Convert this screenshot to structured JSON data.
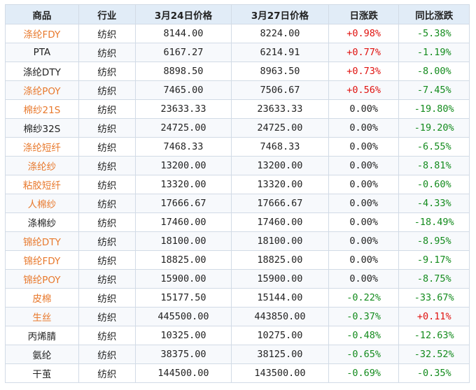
{
  "table": {
    "headers": [
      "商品",
      "行业",
      "3月24日价格",
      "3月27日价格",
      "日涨跌",
      "同比涨跌"
    ],
    "rows": [
      {
        "name": "涤纶FDY",
        "name_color": "orange",
        "industry": "纺织",
        "price1": "8144.00",
        "price2": "8224.00",
        "daily": "+0.98%",
        "daily_dir": "up",
        "yoy": "-5.38%",
        "yoy_dir": "down"
      },
      {
        "name": "PTA",
        "name_color": "black",
        "industry": "纺织",
        "price1": "6167.27",
        "price2": "6214.91",
        "daily": "+0.77%",
        "daily_dir": "up",
        "yoy": "-1.19%",
        "yoy_dir": "down"
      },
      {
        "name": "涤纶DTY",
        "name_color": "black",
        "industry": "纺织",
        "price1": "8898.50",
        "price2": "8963.50",
        "daily": "+0.73%",
        "daily_dir": "up",
        "yoy": "-8.00%",
        "yoy_dir": "down"
      },
      {
        "name": "涤纶POY",
        "name_color": "orange",
        "industry": "纺织",
        "price1": "7465.00",
        "price2": "7506.67",
        "daily": "+0.56%",
        "daily_dir": "up",
        "yoy": "-7.45%",
        "yoy_dir": "down"
      },
      {
        "name": "棉纱21S",
        "name_color": "orange",
        "industry": "纺织",
        "price1": "23633.33",
        "price2": "23633.33",
        "daily": "0.00%",
        "daily_dir": "flat",
        "yoy": "-19.80%",
        "yoy_dir": "down"
      },
      {
        "name": "棉纱32S",
        "name_color": "black",
        "industry": "纺织",
        "price1": "24725.00",
        "price2": "24725.00",
        "daily": "0.00%",
        "daily_dir": "flat",
        "yoy": "-19.20%",
        "yoy_dir": "down"
      },
      {
        "name": "涤纶短纤",
        "name_color": "orange",
        "industry": "纺织",
        "price1": "7468.33",
        "price2": "7468.33",
        "daily": "0.00%",
        "daily_dir": "flat",
        "yoy": "-6.55%",
        "yoy_dir": "down"
      },
      {
        "name": "涤纶纱",
        "name_color": "orange",
        "industry": "纺织",
        "price1": "13200.00",
        "price2": "13200.00",
        "daily": "0.00%",
        "daily_dir": "flat",
        "yoy": "-8.81%",
        "yoy_dir": "down"
      },
      {
        "name": "粘胶短纤",
        "name_color": "orange",
        "industry": "纺织",
        "price1": "13320.00",
        "price2": "13320.00",
        "daily": "0.00%",
        "daily_dir": "flat",
        "yoy": "-0.60%",
        "yoy_dir": "down"
      },
      {
        "name": "人棉纱",
        "name_color": "orange",
        "industry": "纺织",
        "price1": "17666.67",
        "price2": "17666.67",
        "daily": "0.00%",
        "daily_dir": "flat",
        "yoy": "-4.33%",
        "yoy_dir": "down"
      },
      {
        "name": "涤棉纱",
        "name_color": "black",
        "industry": "纺织",
        "price1": "17460.00",
        "price2": "17460.00",
        "daily": "0.00%",
        "daily_dir": "flat",
        "yoy": "-18.49%",
        "yoy_dir": "down"
      },
      {
        "name": "锦纶DTY",
        "name_color": "orange",
        "industry": "纺织",
        "price1": "18100.00",
        "price2": "18100.00",
        "daily": "0.00%",
        "daily_dir": "flat",
        "yoy": "-8.95%",
        "yoy_dir": "down"
      },
      {
        "name": "锦纶FDY",
        "name_color": "orange",
        "industry": "纺织",
        "price1": "18825.00",
        "price2": "18825.00",
        "daily": "0.00%",
        "daily_dir": "flat",
        "yoy": "-9.17%",
        "yoy_dir": "down"
      },
      {
        "name": "锦纶POY",
        "name_color": "orange",
        "industry": "纺织",
        "price1": "15900.00",
        "price2": "15900.00",
        "daily": "0.00%",
        "daily_dir": "flat",
        "yoy": "-8.75%",
        "yoy_dir": "down"
      },
      {
        "name": "皮棉",
        "name_color": "orange",
        "industry": "纺织",
        "price1": "15177.50",
        "price2": "15144.00",
        "daily": "-0.22%",
        "daily_dir": "down",
        "yoy": "-33.67%",
        "yoy_dir": "down"
      },
      {
        "name": "生丝",
        "name_color": "orange",
        "industry": "纺织",
        "price1": "445500.00",
        "price2": "443850.00",
        "daily": "-0.37%",
        "daily_dir": "down",
        "yoy": "+0.11%",
        "yoy_dir": "up"
      },
      {
        "name": "丙烯腈",
        "name_color": "black",
        "industry": "纺织",
        "price1": "10325.00",
        "price2": "10275.00",
        "daily": "-0.48%",
        "daily_dir": "down",
        "yoy": "-12.63%",
        "yoy_dir": "down"
      },
      {
        "name": "氨纶",
        "name_color": "black",
        "industry": "纺织",
        "price1": "38375.00",
        "price2": "38125.00",
        "daily": "-0.65%",
        "daily_dir": "down",
        "yoy": "-32.52%",
        "yoy_dir": "down"
      },
      {
        "name": "干茧",
        "name_color": "black",
        "industry": "纺织",
        "price1": "144500.00",
        "price2": "143500.00",
        "daily": "-0.69%",
        "daily_dir": "down",
        "yoy": "-0.35%",
        "yoy_dir": "down"
      }
    ]
  },
  "colors": {
    "header_bg": "#e1ecf7",
    "grid": "#d2dbe6",
    "orange": "#e8792d",
    "up": "#e0120f",
    "down": "#138b1d"
  }
}
